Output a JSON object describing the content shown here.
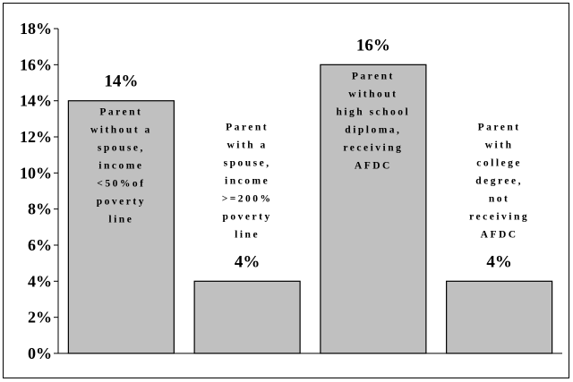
{
  "chart_data": {
    "type": "bar",
    "categories": [
      [
        "Parent",
        "without a",
        "spouse,",
        "income",
        "<50%of",
        "poverty",
        "line"
      ],
      [
        "Parent",
        "with a",
        "spouse,",
        "income",
        ">=200%",
        "poverty",
        "line"
      ],
      [
        "Parent",
        "without",
        "high school",
        "diploma,",
        "receiving",
        "AFDC"
      ],
      [
        "Parent",
        "with",
        "college",
        "degree,",
        "not",
        "receiving",
        "AFDC"
      ]
    ],
    "values": [
      14,
      4,
      16,
      4
    ],
    "data_labels": [
      "14%",
      "4%",
      "16%",
      "4%"
    ],
    "yticks": [
      "0%",
      "2%",
      "4%",
      "6%",
      "8%",
      "10%",
      "12%",
      "14%",
      "16%",
      "18%"
    ],
    "ylim": [
      0,
      18
    ],
    "grid": false,
    "legend": "none",
    "bar_color": "#c0c0c0",
    "title": "",
    "xlabel": "",
    "ylabel": ""
  }
}
